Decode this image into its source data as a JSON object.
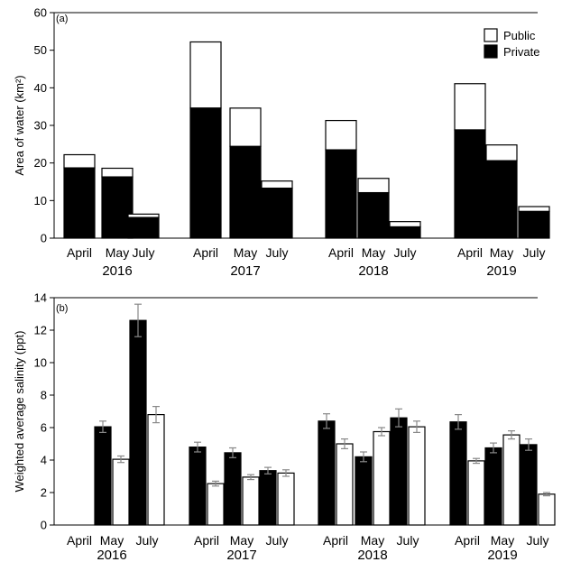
{
  "chart_data": [
    {
      "type": "bar",
      "stacked": true,
      "panel_label": "(a)",
      "ylabel": "Area of water (km²)",
      "ylim": [
        0,
        60
      ],
      "yticks": [
        0,
        10,
        20,
        30,
        40,
        50,
        60
      ],
      "groups": [
        {
          "year": "2016",
          "months": [
            "April",
            "May",
            "July"
          ]
        },
        {
          "year": "2017",
          "months": [
            "April",
            "May",
            "July"
          ]
        },
        {
          "year": "2018",
          "months": [
            "April",
            "May",
            "July"
          ]
        },
        {
          "year": "2019",
          "months": [
            "April",
            "May",
            "July"
          ]
        }
      ],
      "legend": {
        "position": "top-right",
        "entries": [
          "Public",
          "Private"
        ]
      },
      "series": [
        {
          "name": "Private",
          "color": "#000000",
          "values": [
            18.7,
            16.3,
            5.5,
            34.6,
            24.4,
            13.3,
            23.5,
            12.1,
            3.0,
            28.8,
            20.6,
            7.1
          ]
        },
        {
          "name": "Public",
          "color": "#ffffff",
          "values": [
            3.5,
            2.3,
            0.9,
            17.6,
            10.2,
            1.9,
            7.8,
            3.8,
            1.4,
            12.3,
            4.2,
            1.3
          ]
        }
      ],
      "totals": [
        22.2,
        18.6,
        6.4,
        52.2,
        34.6,
        15.2,
        31.3,
        15.9,
        4.4,
        41.1,
        24.8,
        8.4
      ]
    },
    {
      "type": "bar",
      "panel_label": "(b)",
      "ylabel": "Weighted average salinity (ppt)",
      "ylim": [
        0,
        14
      ],
      "yticks": [
        0,
        2,
        4,
        6,
        8,
        10,
        12,
        14
      ],
      "groups": [
        {
          "year": "2016",
          "months": [
            "April",
            "May",
            "July"
          ]
        },
        {
          "year": "2017",
          "months": [
            "April",
            "May",
            "July"
          ]
        },
        {
          "year": "2018",
          "months": [
            "April",
            "May",
            "July"
          ]
        },
        {
          "year": "2019",
          "months": [
            "April",
            "May",
            "July"
          ]
        }
      ],
      "series": [
        {
          "name": "Private",
          "color": "#000000",
          "values": [
            null,
            6.05,
            12.6,
            4.8,
            4.45,
            3.35,
            6.4,
            4.2,
            6.6,
            6.35,
            4.75,
            4.95
          ],
          "errors": [
            null,
            0.35,
            1.0,
            0.3,
            0.3,
            0.2,
            0.45,
            0.3,
            0.55,
            0.45,
            0.3,
            0.35
          ]
        },
        {
          "name": "Public",
          "color": "#ffffff",
          "values": [
            null,
            4.05,
            6.8,
            2.55,
            2.95,
            3.2,
            5.0,
            5.75,
            6.05,
            3.95,
            5.55,
            1.9
          ],
          "errors": [
            null,
            0.2,
            0.5,
            0.15,
            0.15,
            0.2,
            0.3,
            0.25,
            0.35,
            0.15,
            0.25,
            0.1
          ]
        }
      ]
    }
  ]
}
